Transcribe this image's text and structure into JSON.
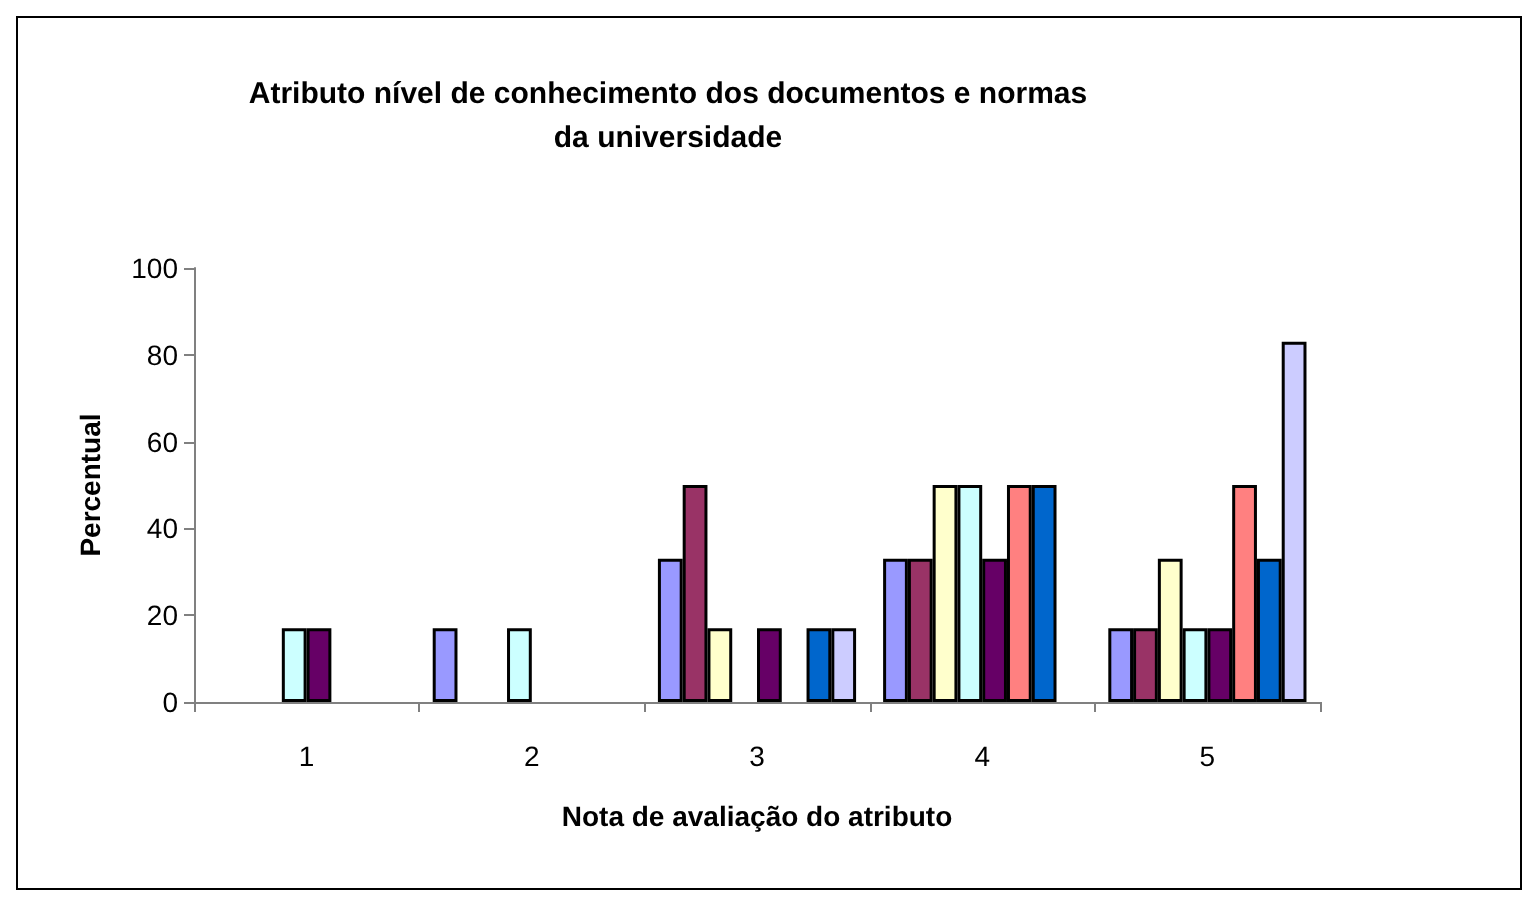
{
  "chart_data": {
    "type": "bar",
    "title": "Atributo nível de conhecimento dos documentos e normas\nda universidade",
    "xlabel": "Nota de avaliação do atributo",
    "ylabel": "Percentual",
    "categories": [
      "1",
      "2",
      "3",
      "4",
      "5"
    ],
    "ylim": [
      0,
      100
    ],
    "yticks": [
      0,
      20,
      40,
      60,
      80,
      100
    ],
    "grid": false,
    "series": [
      {
        "color": "#9999ff",
        "values": [
          null,
          17,
          33,
          33,
          17
        ]
      },
      {
        "color": "#993366",
        "values": [
          null,
          null,
          50,
          33,
          17
        ]
      },
      {
        "color": "#ffffcc",
        "values": [
          null,
          null,
          17,
          50,
          33
        ]
      },
      {
        "color": "#ccffff",
        "values": [
          17,
          17,
          null,
          50,
          17
        ]
      },
      {
        "color": "#660066",
        "values": [
          17,
          null,
          17,
          33,
          17
        ]
      },
      {
        "color": "#ff8080",
        "values": [
          null,
          null,
          null,
          50,
          50
        ]
      },
      {
        "color": "#0066cc",
        "values": [
          null,
          null,
          17,
          50,
          33
        ]
      },
      {
        "color": "#ccccff",
        "values": [
          null,
          null,
          17,
          null,
          83
        ]
      }
    ]
  }
}
